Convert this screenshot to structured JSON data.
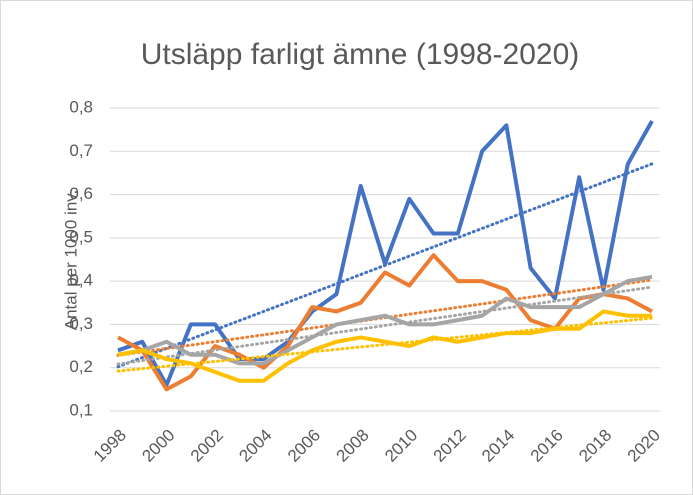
{
  "chart_data": {
    "type": "line",
    "title": "Utsläpp farligt ämne (1998-2020)",
    "y_label": "Antal per 1000 inv.",
    "x": [
      1998,
      1999,
      2000,
      2001,
      2002,
      2003,
      2004,
      2005,
      2006,
      2007,
      2008,
      2009,
      2010,
      2011,
      2012,
      2013,
      2014,
      2015,
      2016,
      2017,
      2018,
      2019,
      2020
    ],
    "series": [
      {
        "color": "#4472c4",
        "values": [
          0.24,
          0.26,
          0.16,
          0.3,
          0.3,
          0.22,
          0.22,
          0.26,
          0.33,
          0.37,
          0.62,
          0.44,
          0.59,
          0.51,
          0.51,
          0.7,
          0.76,
          0.43,
          0.36,
          0.64,
          0.38,
          0.67,
          0.77
        ]
      },
      {
        "color": "#ed7d31",
        "values": [
          0.27,
          0.24,
          0.15,
          0.18,
          0.25,
          0.23,
          0.2,
          0.25,
          0.34,
          0.33,
          0.35,
          0.42,
          0.39,
          0.46,
          0.4,
          0.4,
          0.38,
          0.31,
          0.29,
          0.36,
          0.37,
          0.36,
          0.33
        ]
      },
      {
        "color": "#a5a5a5",
        "values": [
          0.23,
          0.24,
          0.26,
          0.23,
          0.23,
          0.21,
          0.21,
          0.24,
          0.27,
          0.3,
          0.31,
          0.32,
          0.3,
          0.3,
          0.31,
          0.32,
          0.36,
          0.34,
          0.34,
          0.34,
          0.37,
          0.4,
          0.41
        ]
      },
      {
        "color": "#ffc000",
        "values": [
          0.23,
          0.24,
          0.22,
          0.21,
          0.19,
          0.17,
          0.17,
          0.21,
          0.24,
          0.26,
          0.27,
          0.26,
          0.25,
          0.27,
          0.26,
          0.27,
          0.28,
          0.28,
          0.29,
          0.29,
          0.33,
          0.32,
          0.32
        ]
      }
    ],
    "xlim": [
      1998,
      2020
    ],
    "xticks": [
      1998,
      2000,
      2002,
      2004,
      2006,
      2008,
      2010,
      2012,
      2014,
      2016,
      2018,
      2020
    ],
    "ylim": [
      0.1,
      0.8
    ],
    "yticks": [
      {
        "value": 0.1,
        "label": "0,1"
      },
      {
        "value": 0.2,
        "label": "0,2"
      },
      {
        "value": 0.3,
        "label": "0,3"
      },
      {
        "value": 0.4,
        "label": "0,4"
      },
      {
        "value": 0.5,
        "label": "0,5"
      },
      {
        "value": 0.6,
        "label": "0,6"
      },
      {
        "value": 0.7,
        "label": "0,7"
      },
      {
        "value": 0.8,
        "label": "0,8"
      }
    ],
    "grid": true,
    "trendline": true
  }
}
